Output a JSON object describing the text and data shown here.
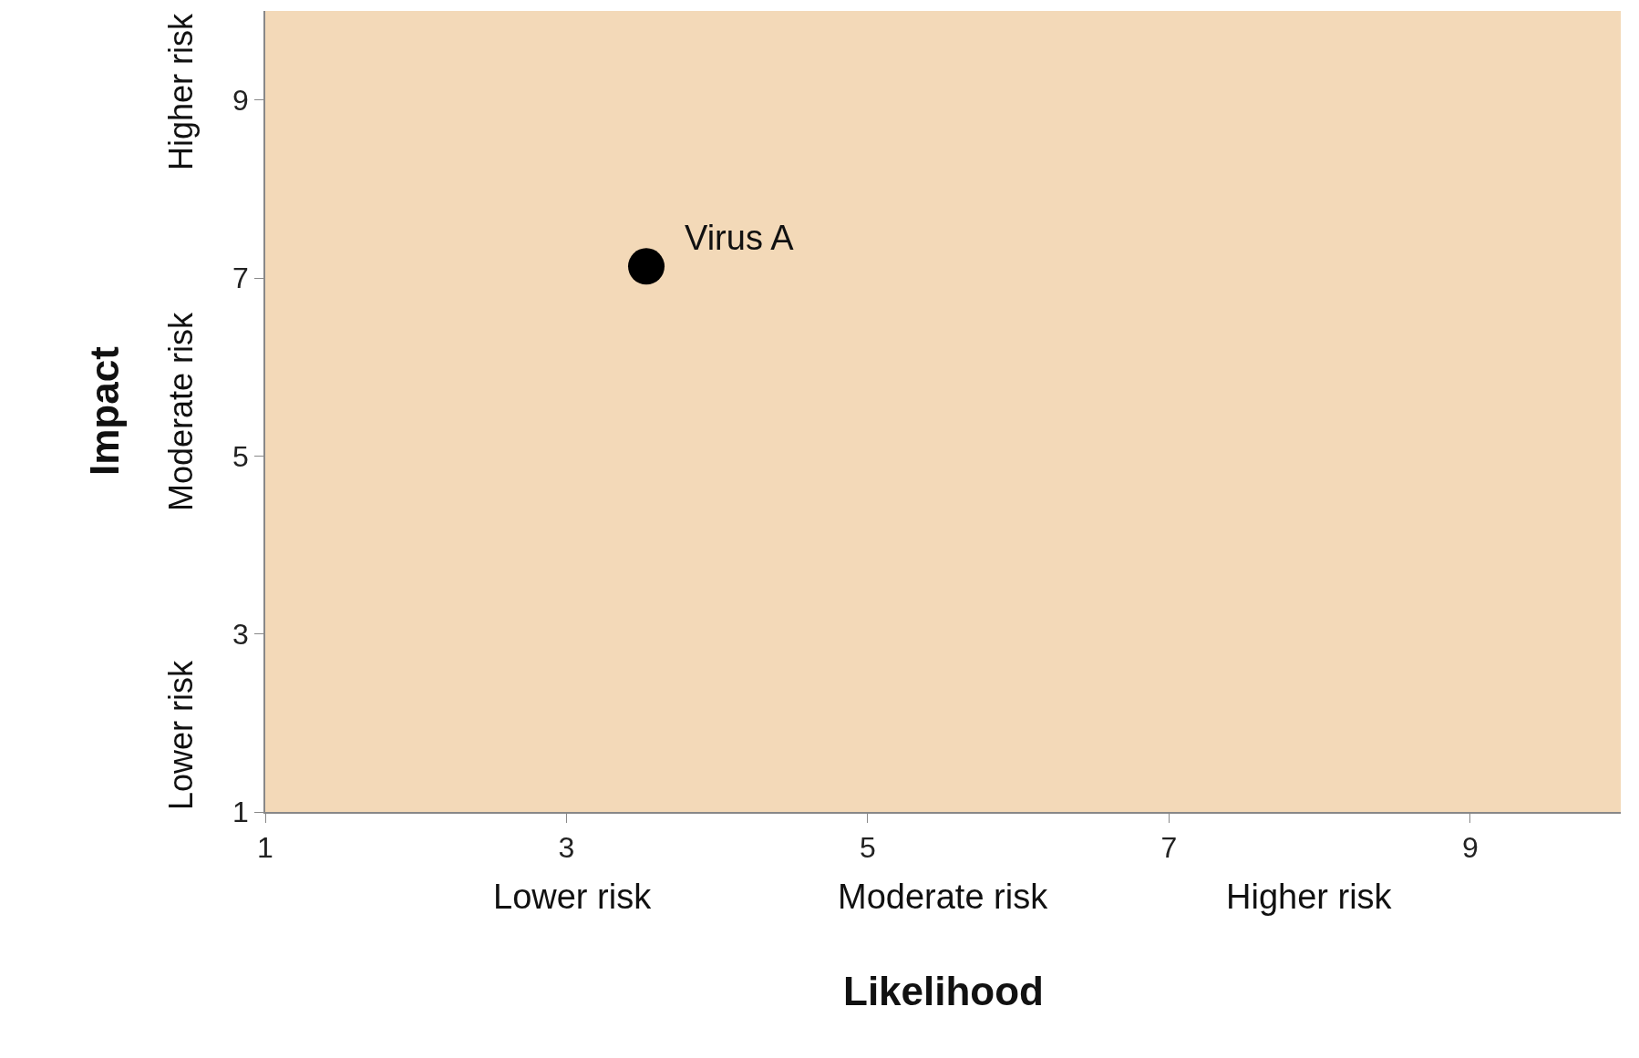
{
  "chart_data": {
    "type": "scatter",
    "xlabel": "Likelihood",
    "ylabel": "Impact",
    "x": [
      3.53
    ],
    "series": [
      {
        "color": "#000000",
        "values": [
          7.13
        ]
      }
    ],
    "marker": "circle",
    "xlim": [
      1,
      10
    ],
    "xticks": [
      1,
      3,
      5,
      7,
      9
    ],
    "ylim": [
      1,
      10
    ],
    "yticks": [
      1,
      3,
      5,
      7,
      9
    ],
    "annotations": [
      {
        "text": "Virus A",
        "x": 3.53,
        "y": 7.13
      },
      "Lower risk",
      "Moderate risk",
      "Higher risk",
      "Lower risk",
      "Moderate risk",
      "Higher risk"
    ]
  }
}
